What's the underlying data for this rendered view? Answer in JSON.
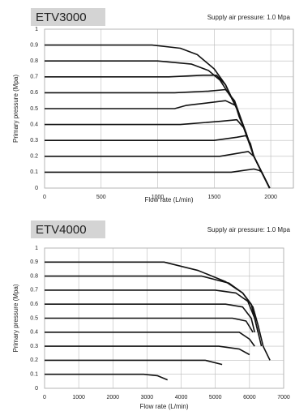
{
  "chart_data": [
    {
      "type": "line",
      "title": "ETV3000",
      "subtitle": "Supply air pressure: 1.0 Mpa",
      "xlabel": "Flow rate (L/min)",
      "ylabel": "Primary pressure (Mpa)",
      "xlim": [
        0,
        2200
      ],
      "ylim": [
        0,
        1
      ],
      "xticks": [
        0,
        500,
        1000,
        1500,
        2000
      ],
      "yticks": [
        0,
        0.1,
        0.2,
        0.3,
        0.4,
        0.5,
        0.6,
        0.7,
        0.8,
        0.9,
        1
      ],
      "grid": true,
      "color": "#111111",
      "series": [
        {
          "x": [
            0,
            950,
            1200,
            1350,
            1500,
            1600,
            1700,
            1780,
            1850,
            1920,
            1990
          ],
          "values": [
            0.9,
            0.9,
            0.88,
            0.84,
            0.75,
            0.65,
            0.5,
            0.35,
            0.2,
            0.1,
            0
          ]
        },
        {
          "x": [
            0,
            1000,
            1300,
            1450,
            1550,
            1650,
            1700,
            1780,
            1850,
            1920,
            1990
          ],
          "values": [
            0.8,
            0.8,
            0.78,
            0.74,
            0.68,
            0.57,
            0.5,
            0.35,
            0.2,
            0.1,
            0
          ]
        },
        {
          "x": [
            0,
            1100,
            1400,
            1520,
            1600,
            1700,
            1780,
            1850,
            1920,
            1990
          ],
          "values": [
            0.7,
            0.7,
            0.71,
            0.71,
            0.65,
            0.5,
            0.35,
            0.2,
            0.1,
            0
          ]
        },
        {
          "x": [
            0,
            1150,
            1450,
            1600,
            1680,
            1780,
            1850,
            1920,
            1990
          ],
          "values": [
            0.6,
            0.6,
            0.61,
            0.62,
            0.55,
            0.35,
            0.2,
            0.1,
            0
          ]
        },
        {
          "x": [
            0,
            1150,
            1250,
            1600,
            1690,
            1720,
            1780,
            1850,
            1920,
            1990
          ],
          "values": [
            0.5,
            0.5,
            0.52,
            0.55,
            0.52,
            0.45,
            0.35,
            0.2,
            0.1,
            0
          ]
        },
        {
          "x": [
            0,
            1200,
            1550,
            1700,
            1760,
            1850,
            1920,
            1990
          ],
          "values": [
            0.4,
            0.4,
            0.42,
            0.43,
            0.38,
            0.2,
            0.1,
            0
          ]
        },
        {
          "x": [
            0,
            1500,
            1700,
            1780,
            1820,
            1850,
            1920,
            1990
          ],
          "values": [
            0.3,
            0.3,
            0.32,
            0.33,
            0.28,
            0.2,
            0.1,
            0
          ]
        },
        {
          "x": [
            0,
            1550,
            1800,
            1850,
            1920,
            1990
          ],
          "values": [
            0.2,
            0.2,
            0.23,
            0.2,
            0.1,
            0
          ]
        },
        {
          "x": [
            0,
            1650,
            1750,
            1850,
            1900,
            1920,
            1990
          ],
          "values": [
            0.1,
            0.1,
            0.11,
            0.12,
            0.11,
            0.1,
            0
          ]
        }
      ]
    },
    {
      "type": "line",
      "title": "ETV4000",
      "subtitle": "Supply air pressure: 1.0 Mpa",
      "xlabel": "Flow rate (L/min)",
      "ylabel": "Primary pressure (Mpa)",
      "xlim": [
        0,
        7000
      ],
      "ylim": [
        0,
        1
      ],
      "xticks": [
        0,
        1000,
        2000,
        3000,
        4000,
        5000,
        6000,
        7000
      ],
      "yticks": [
        0,
        0.1,
        0.2,
        0.3,
        0.4,
        0.5,
        0.6,
        0.7,
        0.8,
        0.9,
        1
      ],
      "grid": true,
      "color": "#111111",
      "series": [
        {
          "x": [
            0,
            3500,
            4500,
            5300,
            5800,
            6100,
            6250,
            6400,
            6600
          ],
          "values": [
            0.9,
            0.9,
            0.84,
            0.76,
            0.68,
            0.58,
            0.45,
            0.3,
            0.2
          ]
        },
        {
          "x": [
            0,
            4600,
            5400,
            5800,
            6050,
            6200,
            6350
          ],
          "values": [
            0.8,
            0.8,
            0.75,
            0.68,
            0.6,
            0.45,
            0.3
          ]
        },
        {
          "x": [
            0,
            5000,
            5600,
            5950,
            6150,
            6250
          ],
          "values": [
            0.7,
            0.7,
            0.68,
            0.62,
            0.5,
            0.4
          ]
        },
        {
          "x": [
            0,
            5300,
            5800,
            6050,
            6150
          ],
          "values": [
            0.6,
            0.6,
            0.58,
            0.5,
            0.4
          ]
        },
        {
          "x": [
            0,
            5500,
            5900,
            6100
          ],
          "values": [
            0.5,
            0.5,
            0.48,
            0.4
          ]
        },
        {
          "x": [
            0,
            5700,
            6000,
            6150
          ],
          "values": [
            0.4,
            0.4,
            0.35,
            0.3
          ]
        },
        {
          "x": [
            0,
            5100,
            5700,
            6000
          ],
          "values": [
            0.3,
            0.3,
            0.28,
            0.24
          ]
        },
        {
          "x": [
            0,
            4700,
            5200
          ],
          "values": [
            0.2,
            0.2,
            0.17
          ]
        },
        {
          "x": [
            0,
            2900,
            3300,
            3600
          ],
          "values": [
            0.1,
            0.1,
            0.09,
            0.06
          ]
        }
      ]
    }
  ]
}
